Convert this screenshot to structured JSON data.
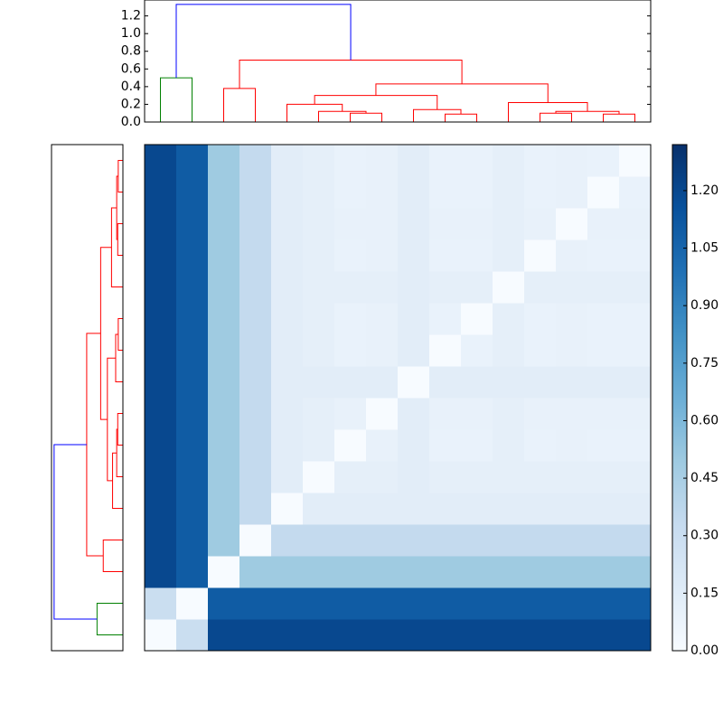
{
  "chart_data": [
    {
      "type": "dendrogram",
      "orientation": "top",
      "ylim": [
        0,
        1.38
      ],
      "yticks": [
        {
          "value": 0,
          "label": "0.0"
        },
        0.2,
        0.4,
        0.6,
        0.8,
        {
          "value": 1,
          "label": "1.0"
        },
        1.2
      ],
      "leaves": 16,
      "links": [
        {
          "children": [
            0,
            1
          ],
          "height": 0.5,
          "color": "#008000"
        },
        {
          "children": [
            6,
            7
          ],
          "height": 0.1,
          "color": "#ff0000"
        },
        {
          "children": [
            5,
            17
          ],
          "height": 0.12,
          "color": "#ff0000"
        },
        {
          "children": [
            4,
            18
          ],
          "height": 0.2,
          "color": "#ff0000"
        },
        {
          "children": [
            9,
            10
          ],
          "height": 0.09,
          "color": "#ff0000"
        },
        {
          "children": [
            8,
            20
          ],
          "height": 0.14,
          "color": "#ff0000"
        },
        {
          "children": [
            19,
            21
          ],
          "height": 0.3,
          "color": "#ff0000"
        },
        {
          "children": [
            12,
            13
          ],
          "height": 0.1,
          "color": "#ff0000"
        },
        {
          "children": [
            14,
            15
          ],
          "height": 0.09,
          "color": "#ff0000"
        },
        {
          "children": [
            23,
            24
          ],
          "height": 0.12,
          "color": "#ff0000"
        },
        {
          "children": [
            11,
            25
          ],
          "height": 0.22,
          "color": "#ff0000"
        },
        {
          "children": [
            22,
            26
          ],
          "height": 0.43,
          "color": "#ff0000"
        },
        {
          "children": [
            2,
            3
          ],
          "height": 0.38,
          "color": "#ff0000"
        },
        {
          "children": [
            28,
            27
          ],
          "height": 0.7,
          "color": "#ff0000"
        },
        {
          "children": [
            16,
            29
          ],
          "height": 1.33,
          "color": "#0000ff"
        }
      ]
    },
    {
      "type": "dendrogram",
      "orientation": "left",
      "xlim": [
        0,
        1.38
      ],
      "leaves": 16,
      "links": [
        {
          "children": [
            0,
            1
          ],
          "height": 0.5,
          "color": "#008000"
        },
        {
          "children": [
            6,
            7
          ],
          "height": 0.1,
          "color": "#ff0000"
        },
        {
          "children": [
            5,
            17
          ],
          "height": 0.12,
          "color": "#ff0000"
        },
        {
          "children": [
            4,
            18
          ],
          "height": 0.2,
          "color": "#ff0000"
        },
        {
          "children": [
            9,
            10
          ],
          "height": 0.09,
          "color": "#ff0000"
        },
        {
          "children": [
            8,
            20
          ],
          "height": 0.14,
          "color": "#ff0000"
        },
        {
          "children": [
            19,
            21
          ],
          "height": 0.3,
          "color": "#ff0000"
        },
        {
          "children": [
            12,
            13
          ],
          "height": 0.1,
          "color": "#ff0000"
        },
        {
          "children": [
            14,
            15
          ],
          "height": 0.09,
          "color": "#ff0000"
        },
        {
          "children": [
            23,
            24
          ],
          "height": 0.12,
          "color": "#ff0000"
        },
        {
          "children": [
            11,
            25
          ],
          "height": 0.22,
          "color": "#ff0000"
        },
        {
          "children": [
            22,
            26
          ],
          "height": 0.43,
          "color": "#ff0000"
        },
        {
          "children": [
            2,
            3
          ],
          "height": 0.38,
          "color": "#ff0000"
        },
        {
          "children": [
            28,
            27
          ],
          "height": 0.7,
          "color": "#ff0000"
        },
        {
          "children": [
            16,
            29
          ],
          "height": 1.33,
          "color": "#0000ff"
        }
      ]
    },
    {
      "type": "heatmap",
      "colormap": "Blues",
      "zlim": [
        0,
        1.32
      ],
      "zticks": [
        {
          "value": 0,
          "label": "0.00"
        },
        {
          "value": 0.15,
          "label": "0.15"
        },
        {
          "value": 0.3,
          "label": "0.30"
        },
        {
          "value": 0.45,
          "label": "0.45"
        },
        {
          "value": 0.6,
          "label": "0.60"
        },
        {
          "value": 0.75,
          "label": "0.75"
        },
        {
          "value": 0.9,
          "label": "0.90"
        },
        {
          "value": 1.05,
          "label": "1.05"
        },
        {
          "value": 1.2,
          "label": "1.20"
        }
      ],
      "matrix": [
        [
          0,
          0.3,
          1.2,
          1.2,
          1.2,
          1.2,
          1.2,
          1.2,
          1.2,
          1.2,
          1.2,
          1.2,
          1.2,
          1.2,
          1.2,
          1.2
        ],
        [
          0.3,
          0,
          1.1,
          1.1,
          1.1,
          1.1,
          1.1,
          1.1,
          1.1,
          1.1,
          1.1,
          1.1,
          1.1,
          1.1,
          1.1,
          1.1
        ],
        [
          1.2,
          1.1,
          0,
          0.49,
          0.49,
          0.49,
          0.49,
          0.49,
          0.49,
          0.49,
          0.49,
          0.49,
          0.49,
          0.49,
          0.49,
          0.49
        ],
        [
          1.2,
          1.1,
          0.49,
          0,
          0.34,
          0.34,
          0.34,
          0.34,
          0.34,
          0.34,
          0.34,
          0.34,
          0.34,
          0.34,
          0.34,
          0.34
        ],
        [
          1.2,
          1.1,
          0.49,
          0.34,
          0,
          0.14,
          0.14,
          0.14,
          0.14,
          0.14,
          0.14,
          0.14,
          0.14,
          0.14,
          0.14,
          0.14
        ],
        [
          1.2,
          1.1,
          0.49,
          0.34,
          0.14,
          0,
          0.12,
          0.12,
          0.14,
          0.12,
          0.12,
          0.12,
          0.12,
          0.12,
          0.12,
          0.12
        ],
        [
          1.2,
          1.1,
          0.49,
          0.34,
          0.14,
          0.12,
          0,
          0.1,
          0.14,
          0.09,
          0.09,
          0.12,
          0.09,
          0.1,
          0.09,
          0.09
        ],
        [
          1.2,
          1.1,
          0.49,
          0.34,
          0.14,
          0.12,
          0.1,
          0,
          0.14,
          0.1,
          0.1,
          0.12,
          0.1,
          0.1,
          0.1,
          0.1
        ],
        [
          1.2,
          1.1,
          0.49,
          0.34,
          0.14,
          0.14,
          0.14,
          0.14,
          0,
          0.14,
          0.14,
          0.14,
          0.14,
          0.14,
          0.14,
          0.14
        ],
        [
          1.2,
          1.1,
          0.49,
          0.34,
          0.14,
          0.12,
          0.09,
          0.1,
          0.14,
          0,
          0.09,
          0.12,
          0.09,
          0.1,
          0.09,
          0.09
        ],
        [
          1.2,
          1.1,
          0.49,
          0.34,
          0.14,
          0.12,
          0.09,
          0.1,
          0.14,
          0.09,
          0,
          0.12,
          0.09,
          0.1,
          0.09,
          0.09
        ],
        [
          1.2,
          1.1,
          0.49,
          0.34,
          0.14,
          0.12,
          0.12,
          0.12,
          0.14,
          0.12,
          0.12,
          0,
          0.12,
          0.12,
          0.12,
          0.12
        ],
        [
          1.2,
          1.1,
          0.49,
          0.34,
          0.14,
          0.12,
          0.09,
          0.1,
          0.14,
          0.09,
          0.09,
          0.12,
          0,
          0.1,
          0.09,
          0.09
        ],
        [
          1.2,
          1.1,
          0.49,
          0.34,
          0.14,
          0.12,
          0.1,
          0.1,
          0.14,
          0.1,
          0.1,
          0.12,
          0.1,
          0,
          0.1,
          0.1
        ],
        [
          1.2,
          1.1,
          0.49,
          0.34,
          0.14,
          0.12,
          0.09,
          0.1,
          0.14,
          0.09,
          0.09,
          0.12,
          0.09,
          0.1,
          0,
          0.09
        ],
        [
          1.2,
          1.1,
          0.49,
          0.34,
          0.14,
          0.12,
          0.09,
          0.1,
          0.14,
          0.09,
          0.09,
          0.12,
          0.09,
          0.1,
          0.09,
          0
        ]
      ]
    }
  ]
}
